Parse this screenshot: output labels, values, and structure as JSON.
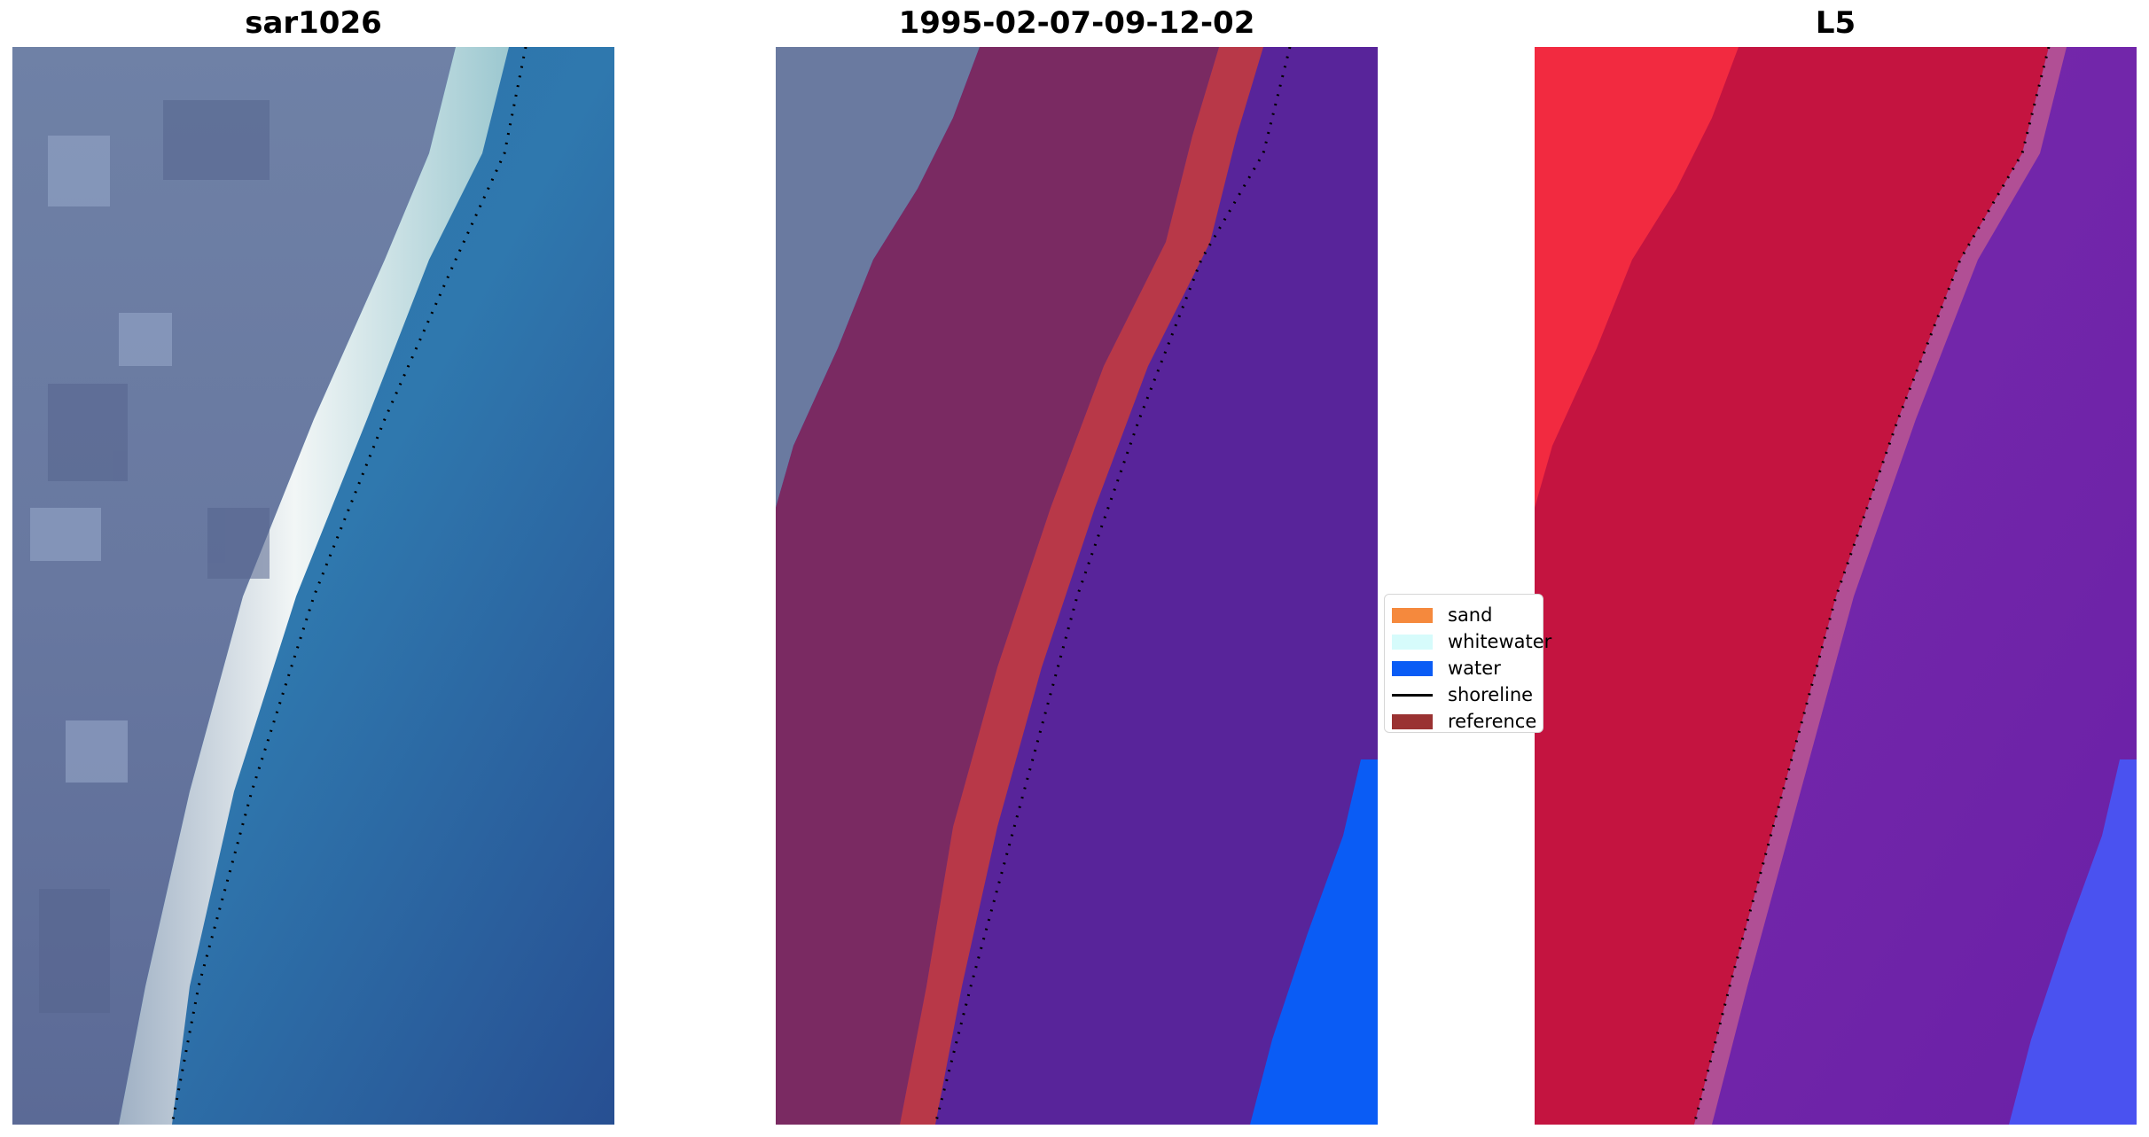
{
  "panels": [
    {
      "title": "sar1026"
    },
    {
      "title": "1995-02-07-09-12-02"
    },
    {
      "title": "L5"
    }
  ],
  "legend": {
    "items": [
      {
        "label": "sand",
        "color": "#f5893d",
        "kind": "patch"
      },
      {
        "label": "whitewater",
        "color": "#d6fbfb",
        "kind": "patch"
      },
      {
        "label": "water",
        "color": "#0a5cf5",
        "kind": "patch"
      },
      {
        "label": "shoreline",
        "color": "#000000",
        "kind": "line"
      },
      {
        "label": "reference",
        "color": "#9a3232",
        "kind": "patch"
      }
    ]
  },
  "colors": {
    "land": "#6878a0",
    "surf": "#f0f4f4",
    "ocean": "#2f6fa8",
    "land_class": "#7a2a62",
    "sand_class": "#b83848",
    "water_class": "#58249a",
    "water_class_blue": "#0a5cf5",
    "prob_land": "#f22a40",
    "prob_mid": "#c41440",
    "prob_water": "#7424a8",
    "prob_blue": "#4a52f0"
  }
}
